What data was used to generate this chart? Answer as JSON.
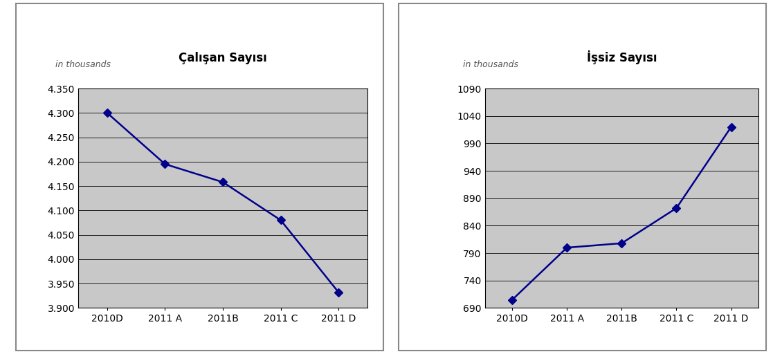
{
  "left_title": "Çalışan Sayısı",
  "right_title": "İşsiz Sayısı",
  "subtitle": "in thousands",
  "categories": [
    "2010D",
    "2011 A",
    "2011B",
    "2011 C",
    "2011 D"
  ],
  "left_values": [
    4300,
    4195,
    4158,
    4080,
    3932
  ],
  "right_values": [
    705,
    800,
    808,
    872,
    1020
  ],
  "left_ylim": [
    3900,
    4350
  ],
  "right_ylim": [
    690,
    1090
  ],
  "left_yticks": [
    3900,
    3950,
    4000,
    4050,
    4100,
    4150,
    4200,
    4250,
    4300,
    4350
  ],
  "right_yticks": [
    690,
    740,
    790,
    840,
    890,
    940,
    990,
    1040,
    1090
  ],
  "line_color": "#00008B",
  "marker": "D",
  "marker_size": 6,
  "bg_color": "#C8C8C8",
  "fig_bg": "#FFFFFF",
  "title_fontsize": 12,
  "subtitle_fontsize": 9,
  "tick_fontsize": 10,
  "border_color": "#888888"
}
